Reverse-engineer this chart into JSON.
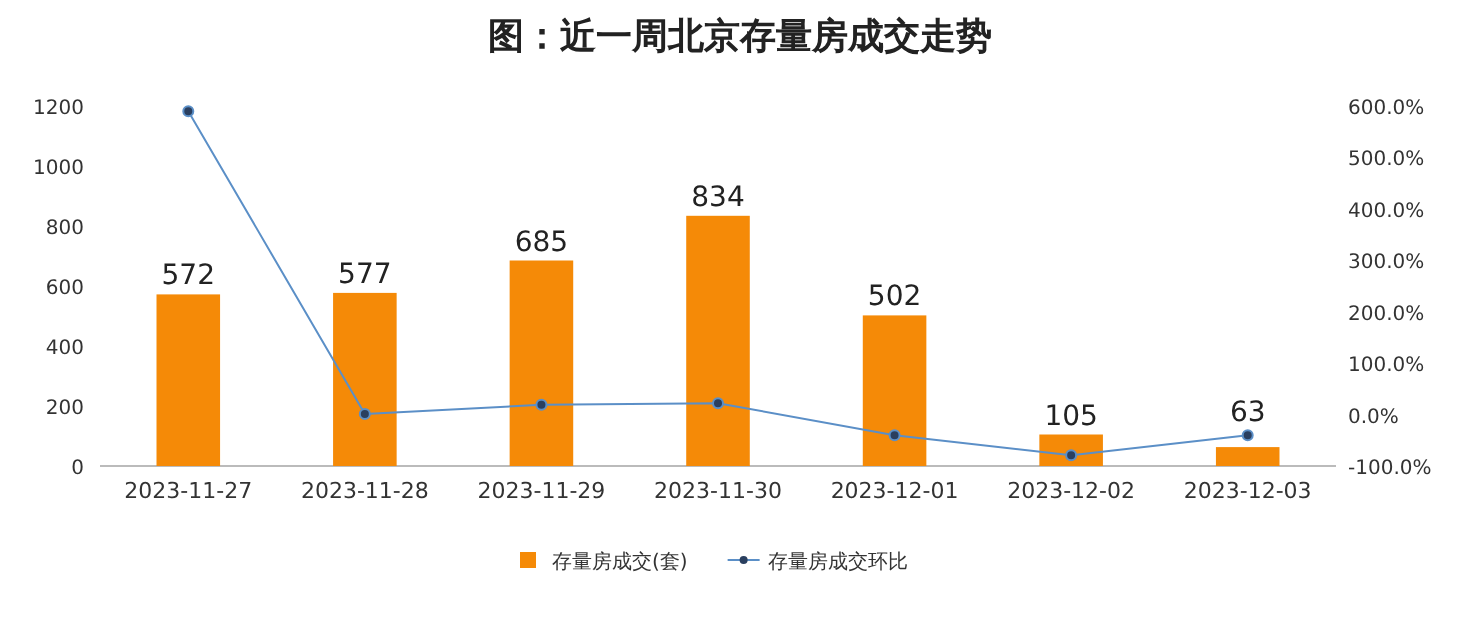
{
  "chart_data": {
    "type": "bar",
    "title": "图：近一周北京存量房成交走势",
    "categories": [
      "2023-11-27",
      "2023-11-28",
      "2023-11-29",
      "2023-11-30",
      "2023-12-01",
      "2023-12-02",
      "2023-12-03"
    ],
    "series": [
      {
        "name": "存量房成交(套)",
        "color": "#f58a07",
        "values": [
          572,
          577,
          685,
          834,
          502,
          105,
          63
        ],
        "value_labels": [
          "572",
          "577",
          "685",
          "834",
          "502",
          "105",
          "63"
        ]
      },
      {
        "name": "存量房成交环比",
        "type": "line",
        "axis": "y2",
        "color": "#5b8fc7",
        "marker": "circle",
        "values": [
          590,
          1,
          19,
          22,
          -40,
          -79,
          -40
        ]
      }
    ],
    "ylim": [
      0,
      1200
    ],
    "yticks": [
      0,
      200,
      400,
      600,
      800,
      1000,
      1200
    ],
    "y2lim": [
      -100,
      600
    ],
    "y2ticks": [
      {
        "value": -100,
        "label": "-100.0%"
      },
      {
        "value": 0,
        "label": "0.0%"
      },
      {
        "value": 100,
        "label": "100.0%"
      },
      {
        "value": 200,
        "label": "200.0%"
      },
      {
        "value": 300,
        "label": "300.0%"
      },
      {
        "value": 400,
        "label": "400.0%"
      },
      {
        "value": 500,
        "label": "500.0%"
      },
      {
        "value": 600,
        "label": "600.0%"
      }
    ],
    "legend": "bottom"
  }
}
